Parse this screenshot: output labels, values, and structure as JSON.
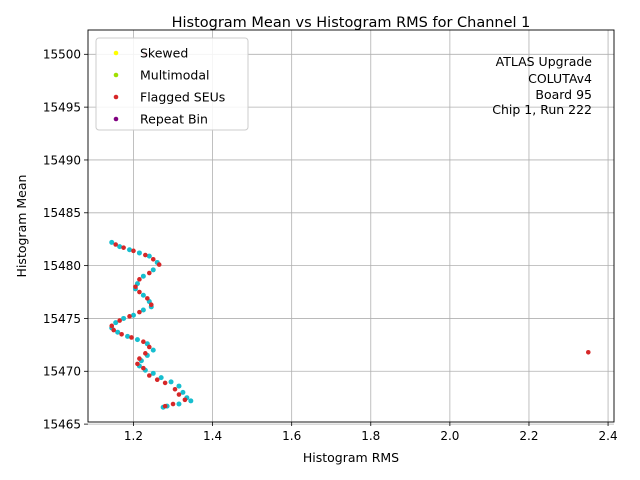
{
  "chart_data": {
    "type": "scatter",
    "title": "Histogram Mean vs Histogram RMS for Channel 1",
    "xlabel": "Histogram RMS",
    "ylabel": "Histogram Mean",
    "xlim": [
      1.085,
      2.415
    ],
    "ylim": [
      15465.2,
      15502.3
    ],
    "xticks": [
      1.2,
      1.4,
      1.6,
      1.8,
      2.0,
      2.2,
      2.4
    ],
    "xtick_labels": [
      "1.2",
      "1.4",
      "1.6",
      "1.8",
      "2.0",
      "2.2",
      "2.4"
    ],
    "yticks": [
      15465,
      15470,
      15475,
      15480,
      15485,
      15490,
      15495,
      15500
    ],
    "ytick_labels": [
      "15465",
      "15470",
      "15475",
      "15480",
      "15485",
      "15490",
      "15495",
      "15500"
    ],
    "grid": true,
    "legend_position": "top-left",
    "annotation_lines": [
      "ATLAS Upgrade",
      "COLUTAv4",
      "Board 95",
      "Chip 1, Run 222"
    ],
    "base_color": "#17becf",
    "base_points": [
      [
        1.145,
        15482.2
      ],
      [
        1.165,
        15481.8
      ],
      [
        1.19,
        15481.5
      ],
      [
        1.215,
        15481.2
      ],
      [
        1.24,
        15480.9
      ],
      [
        1.26,
        15480.3
      ],
      [
        1.25,
        15479.6
      ],
      [
        1.225,
        15479.0
      ],
      [
        1.21,
        15478.3
      ],
      [
        1.205,
        15477.8
      ],
      [
        1.225,
        15477.2
      ],
      [
        1.24,
        15476.6
      ],
      [
        1.245,
        15476.1
      ],
      [
        1.225,
        15475.8
      ],
      [
        1.2,
        15475.3
      ],
      [
        1.175,
        15475.0
      ],
      [
        1.155,
        15474.6
      ],
      [
        1.145,
        15474.1
      ],
      [
        1.16,
        15473.7
      ],
      [
        1.185,
        15473.3
      ],
      [
        1.21,
        15473.0
      ],
      [
        1.235,
        15472.6
      ],
      [
        1.25,
        15472.0
      ],
      [
        1.235,
        15471.5
      ],
      [
        1.22,
        15471.0
      ],
      [
        1.215,
        15470.5
      ],
      [
        1.23,
        15470.1
      ],
      [
        1.25,
        15469.8
      ],
      [
        1.27,
        15469.4
      ],
      [
        1.295,
        15469.0
      ],
      [
        1.315,
        15468.6
      ],
      [
        1.325,
        15468.0
      ],
      [
        1.335,
        15467.5
      ],
      [
        1.345,
        15467.2
      ],
      [
        1.315,
        15466.9
      ],
      [
        1.285,
        15466.7
      ],
      [
        1.275,
        15466.6
      ]
    ],
    "series": [
      {
        "name": "Skewed",
        "color": "#ffff00",
        "points": []
      },
      {
        "name": "Multimodal",
        "color": "#a0e000",
        "points": []
      },
      {
        "name": "Flagged SEUs",
        "color": "#d62728",
        "points": [
          [
            1.155,
            15482.0
          ],
          [
            1.175,
            15481.7
          ],
          [
            1.2,
            15481.4
          ],
          [
            1.23,
            15481.0
          ],
          [
            1.25,
            15480.6
          ],
          [
            1.265,
            15480.1
          ],
          [
            1.24,
            15479.3
          ],
          [
            1.215,
            15478.7
          ],
          [
            1.205,
            15478.0
          ],
          [
            1.215,
            15477.5
          ],
          [
            1.235,
            15476.9
          ],
          [
            1.245,
            15476.3
          ],
          [
            1.215,
            15475.6
          ],
          [
            1.19,
            15475.2
          ],
          [
            1.165,
            15474.8
          ],
          [
            1.145,
            15474.3
          ],
          [
            1.15,
            15473.9
          ],
          [
            1.17,
            15473.5
          ],
          [
            1.195,
            15473.2
          ],
          [
            1.225,
            15472.8
          ],
          [
            1.24,
            15472.3
          ],
          [
            1.23,
            15471.7
          ],
          [
            1.215,
            15471.2
          ],
          [
            1.21,
            15470.7
          ],
          [
            1.225,
            15470.3
          ],
          [
            1.24,
            15469.6
          ],
          [
            1.26,
            15469.2
          ],
          [
            1.28,
            15468.9
          ],
          [
            1.305,
            15468.3
          ],
          [
            1.315,
            15467.8
          ],
          [
            1.33,
            15467.3
          ],
          [
            1.3,
            15466.9
          ],
          [
            1.28,
            15466.7
          ],
          [
            1.23,
            15500.0
          ],
          [
            2.35,
            15471.8
          ]
        ]
      },
      {
        "name": "Repeat Bin",
        "color": "#800080",
        "points": []
      }
    ]
  }
}
